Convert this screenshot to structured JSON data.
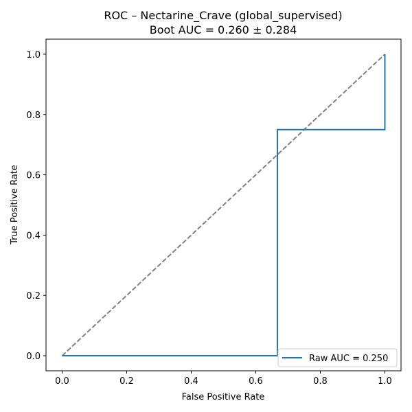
{
  "chart_data": {
    "type": "line",
    "title": "ROC – Nectarine_Crave (global_supervised)",
    "subtitle": "Boot AUC = 0.260 ± 0.284",
    "xlabel": "False Positive Rate",
    "ylabel": "True Positive Rate",
    "xlim": [
      -0.05,
      1.05
    ],
    "ylim": [
      -0.05,
      1.05
    ],
    "xticks": [
      0.0,
      0.2,
      0.4,
      0.6,
      0.8,
      1.0
    ],
    "yticks": [
      0.0,
      0.2,
      0.4,
      0.6,
      0.8,
      1.0
    ],
    "xtick_labels": [
      "0.0",
      "0.2",
      "0.4",
      "0.6",
      "0.8",
      "1.0"
    ],
    "ytick_labels": [
      "0.0",
      "0.2",
      "0.4",
      "0.6",
      "0.8",
      "1.0"
    ],
    "grid": false,
    "legend_position": "lower-right",
    "series": [
      {
        "name": "Raw AUC = 0.250",
        "color": "#1f77b4",
        "style": "solid",
        "x": [
          0.0,
          0.0,
          0.667,
          0.667,
          1.0,
          1.0
        ],
        "y": [
          0.0,
          0.0,
          0.0,
          0.75,
          0.75,
          1.0
        ]
      },
      {
        "color": "#808080",
        "style": "dashed",
        "x": [
          0.0,
          1.0
        ],
        "y": [
          0.0,
          1.0
        ]
      }
    ]
  }
}
